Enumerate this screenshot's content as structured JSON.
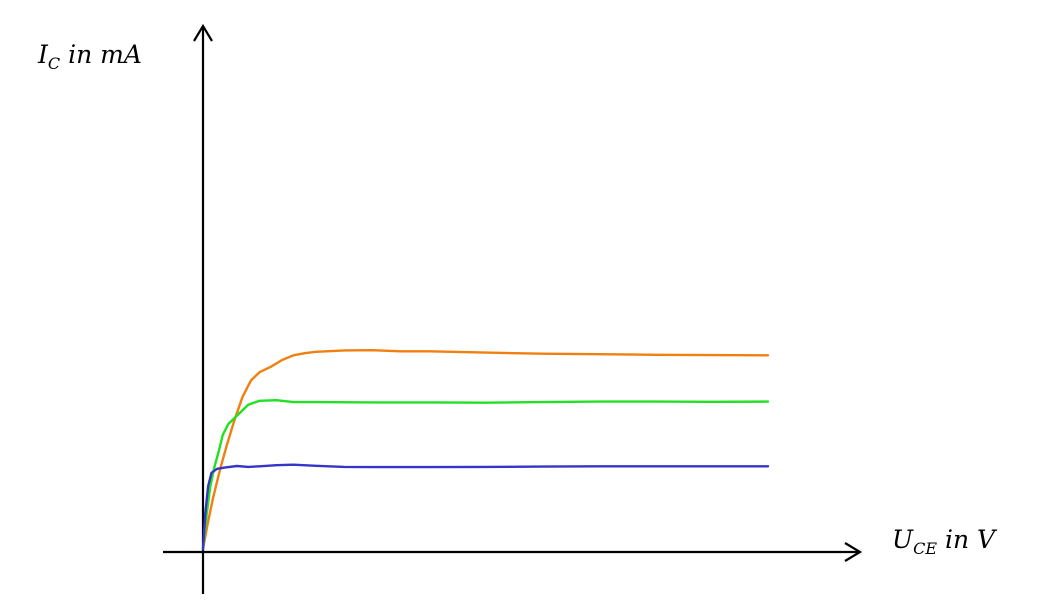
{
  "chart_data": {
    "type": "line",
    "title": "",
    "xlabel": {
      "main": "U",
      "sub": "CE",
      "rest": " in V"
    },
    "ylabel": {
      "main": "I",
      "sub": "C",
      "rest": " in mA"
    },
    "ticks_shown": false,
    "grid": false,
    "xlim": [
      0,
      10
    ],
    "ylim": [
      0,
      10
    ],
    "series": [
      {
        "color": "#f07f10",
        "x": [
          0.0,
          0.08,
          0.18,
          0.3,
          0.42,
          0.55,
          0.7,
          0.85,
          1.0,
          1.2,
          1.4,
          1.6,
          1.8,
          2.0,
          2.5,
          3.0,
          3.5,
          4.0,
          5.0,
          6.0,
          7.0,
          8.0,
          9.0,
          10.0
        ],
        "y": [
          0.0,
          0.9,
          1.9,
          2.9,
          3.8,
          4.7,
          5.6,
          6.2,
          6.5,
          6.7,
          6.95,
          7.12,
          7.2,
          7.25,
          7.3,
          7.31,
          7.27,
          7.27,
          7.22,
          7.18,
          7.16,
          7.14,
          7.13,
          7.12
        ]
      },
      {
        "color": "#22e022",
        "x": [
          0.0,
          0.06,
          0.13,
          0.2,
          0.28,
          0.35,
          0.45,
          0.6,
          0.8,
          1.0,
          1.3,
          1.6,
          2.0,
          3.0,
          4.0,
          5.0,
          6.0,
          7.0,
          8.0,
          9.0,
          10.0
        ],
        "y": [
          0.0,
          1.2,
          2.3,
          3.0,
          3.6,
          4.2,
          4.6,
          4.9,
          5.3,
          5.45,
          5.47,
          5.4,
          5.4,
          5.39,
          5.39,
          5.38,
          5.4,
          5.42,
          5.42,
          5.41,
          5.42
        ]
      },
      {
        "color": "#3535c8",
        "x": [
          0.0,
          0.04,
          0.09,
          0.15,
          0.25,
          0.4,
          0.6,
          0.8,
          1.0,
          1.3,
          1.6,
          2.0,
          2.5,
          3.0,
          4.0,
          5.0,
          6.0,
          7.0,
          8.0,
          9.0,
          10.0
        ],
        "y": [
          0.0,
          1.3,
          2.3,
          2.8,
          2.95,
          3.0,
          3.05,
          3.02,
          3.04,
          3.08,
          3.1,
          3.06,
          3.02,
          3.01,
          3.01,
          3.02,
          3.03,
          3.04,
          3.04,
          3.04,
          3.04
        ]
      }
    ]
  }
}
